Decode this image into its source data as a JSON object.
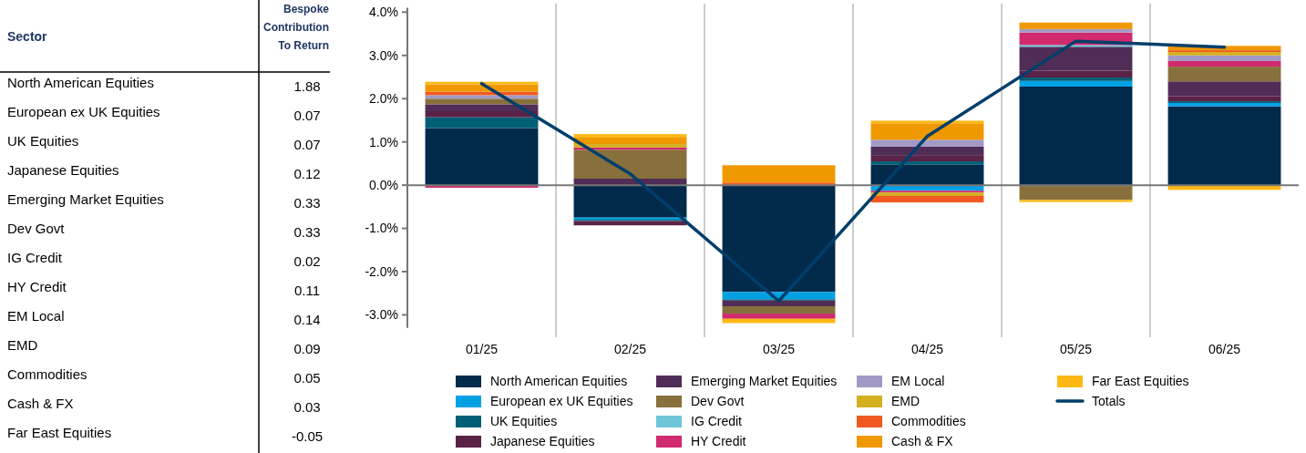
{
  "chart_data": [
    {
      "type": "other",
      "xlabel": "Sector",
      "ylabel": "Bespoke Contribution To Return",
      "categories": [
        "North American Equities",
        "European ex UK Equities",
        "UK Equities",
        "Japanese Equities",
        "Emerging Market Equities",
        "Dev Govt",
        "IG Credit",
        "HY Credit",
        "EM Local",
        "EMD",
        "Commodities",
        "Cash & FX",
        "Far East Equities"
      ],
      "values": [
        1.88,
        0.07,
        0.07,
        0.12,
        0.33,
        0.33,
        0.02,
        0.11,
        0.14,
        0.09,
        0.05,
        0.03,
        -0.05
      ],
      "data_labels": true
    },
    {
      "type": "bar",
      "stacked": true,
      "categories": [
        "01/25",
        "02/25",
        "03/25",
        "04/25",
        "05/25",
        "06/25"
      ],
      "ylim": [
        -3.3,
        4.1
      ],
      "yticks": [
        {
          "value": -3,
          "label": "-3.0%"
        },
        {
          "value": -2,
          "label": "-2.0%"
        },
        {
          "value": -1,
          "label": "-1.0%"
        },
        {
          "value": 0,
          "label": "0.0%"
        },
        {
          "value": 1,
          "label": "1.0%"
        },
        {
          "value": 2,
          "label": "2.0%"
        },
        {
          "value": 3,
          "label": "3.0%"
        },
        {
          "value": 4,
          "label": "4.0%"
        }
      ],
      "grid": "x",
      "legend": "bottom",
      "series": [
        {
          "name": "North American Equities",
          "color": "#022a4b",
          "values": [
            1.32,
            -0.75,
            -2.47,
            0.47,
            2.28,
            1.82
          ]
        },
        {
          "name": "European ex UK Equities",
          "color": "#00a0e3",
          "values": [
            null,
            -0.05,
            -0.17,
            -0.13,
            0.13,
            0.08
          ]
        },
        {
          "name": "UK Equities",
          "color": "#005f75",
          "values": [
            0.25,
            -0.03,
            -0.03,
            0.08,
            0.08,
            0.04
          ]
        },
        {
          "name": "Japanese Equities",
          "color": "#5b2248",
          "values": [
            0.14,
            -0.1,
            null,
            0.13,
            0.16,
            0.12
          ]
        },
        {
          "name": "Emerging Market Equities",
          "color": "#502d56",
          "values": [
            0.16,
            0.15,
            -0.13,
            0.21,
            0.55,
            0.34
          ]
        },
        {
          "name": "Dev Govt",
          "color": "#87703c",
          "values": [
            0.13,
            0.67,
            -0.17,
            null,
            -0.34,
            0.34
          ]
        },
        {
          "name": "IG Credit",
          "color": "#6ec6d9",
          "values": [
            null,
            null,
            null,
            null,
            0.04,
            null
          ]
        },
        {
          "name": "HY Credit",
          "color": "#d12a6e",
          "values": [
            -0.06,
            0.05,
            -0.12,
            -0.04,
            0.29,
            0.13
          ]
        },
        {
          "name": "EM Local",
          "color": "#a29ac5",
          "values": [
            0.08,
            null,
            null,
            0.16,
            0.08,
            0.13
          ]
        },
        {
          "name": "EMD",
          "color": "#d4af20",
          "values": [
            null,
            0.08,
            null,
            -0.08,
            null,
            0.08
          ]
        },
        {
          "name": "Commodities",
          "color": "#f05a22",
          "values": [
            0.08,
            null,
            0.06,
            -0.15,
            null,
            0.04
          ]
        },
        {
          "name": "Cash & FX",
          "color": "#f09800",
          "values": [
            0.17,
            0.15,
            0.4,
            0.38,
            0.15,
            0.1
          ]
        },
        {
          "name": "Far East Equities",
          "color": "#fdb813",
          "values": [
            0.06,
            0.08,
            -0.1,
            0.06,
            -0.05,
            -0.11
          ]
        },
        {
          "name": "Totals",
          "type": "line",
          "color": "#003f6b",
          "values": [
            2.35,
            0.26,
            -2.68,
            1.13,
            3.33,
            3.19
          ]
        }
      ]
    }
  ]
}
